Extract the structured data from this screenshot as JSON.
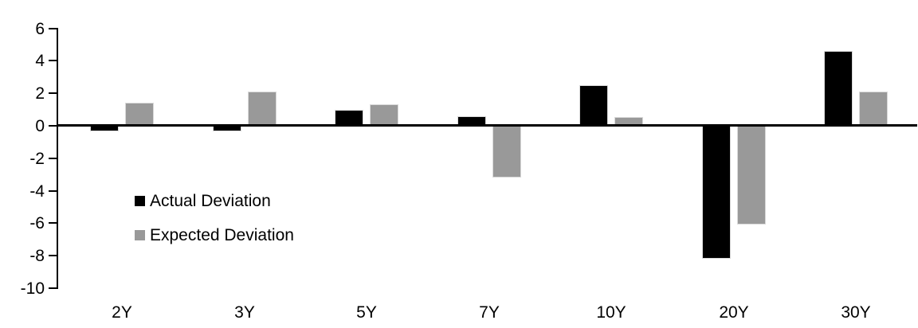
{
  "chart_data": {
    "type": "bar",
    "title": "",
    "xlabel": "",
    "ylabel": "",
    "categories": [
      "2Y",
      "3Y",
      "5Y",
      "7Y",
      "10Y",
      "20Y",
      "30Y"
    ],
    "series": [
      {
        "name": "Actual Deviation",
        "color": "#000000",
        "values": [
          -0.35,
          -0.35,
          1.0,
          0.6,
          2.5,
          -8.2,
          4.6
        ]
      },
      {
        "name": "Expected Deviation",
        "color": "#999999",
        "values": [
          1.4,
          2.1,
          1.3,
          -3.2,
          0.55,
          -6.1,
          2.1
        ]
      }
    ],
    "ylim": [
      -10,
      6
    ],
    "yticks": [
      6,
      4,
      2,
      0,
      -2,
      -4,
      -6,
      -8,
      -10
    ],
    "grid": false,
    "legend_position": "inside-left",
    "colors": {
      "background": "#ffffff",
      "axis": "#000000",
      "bar_outline": "#d9d9d9",
      "text": "#000000"
    }
  }
}
